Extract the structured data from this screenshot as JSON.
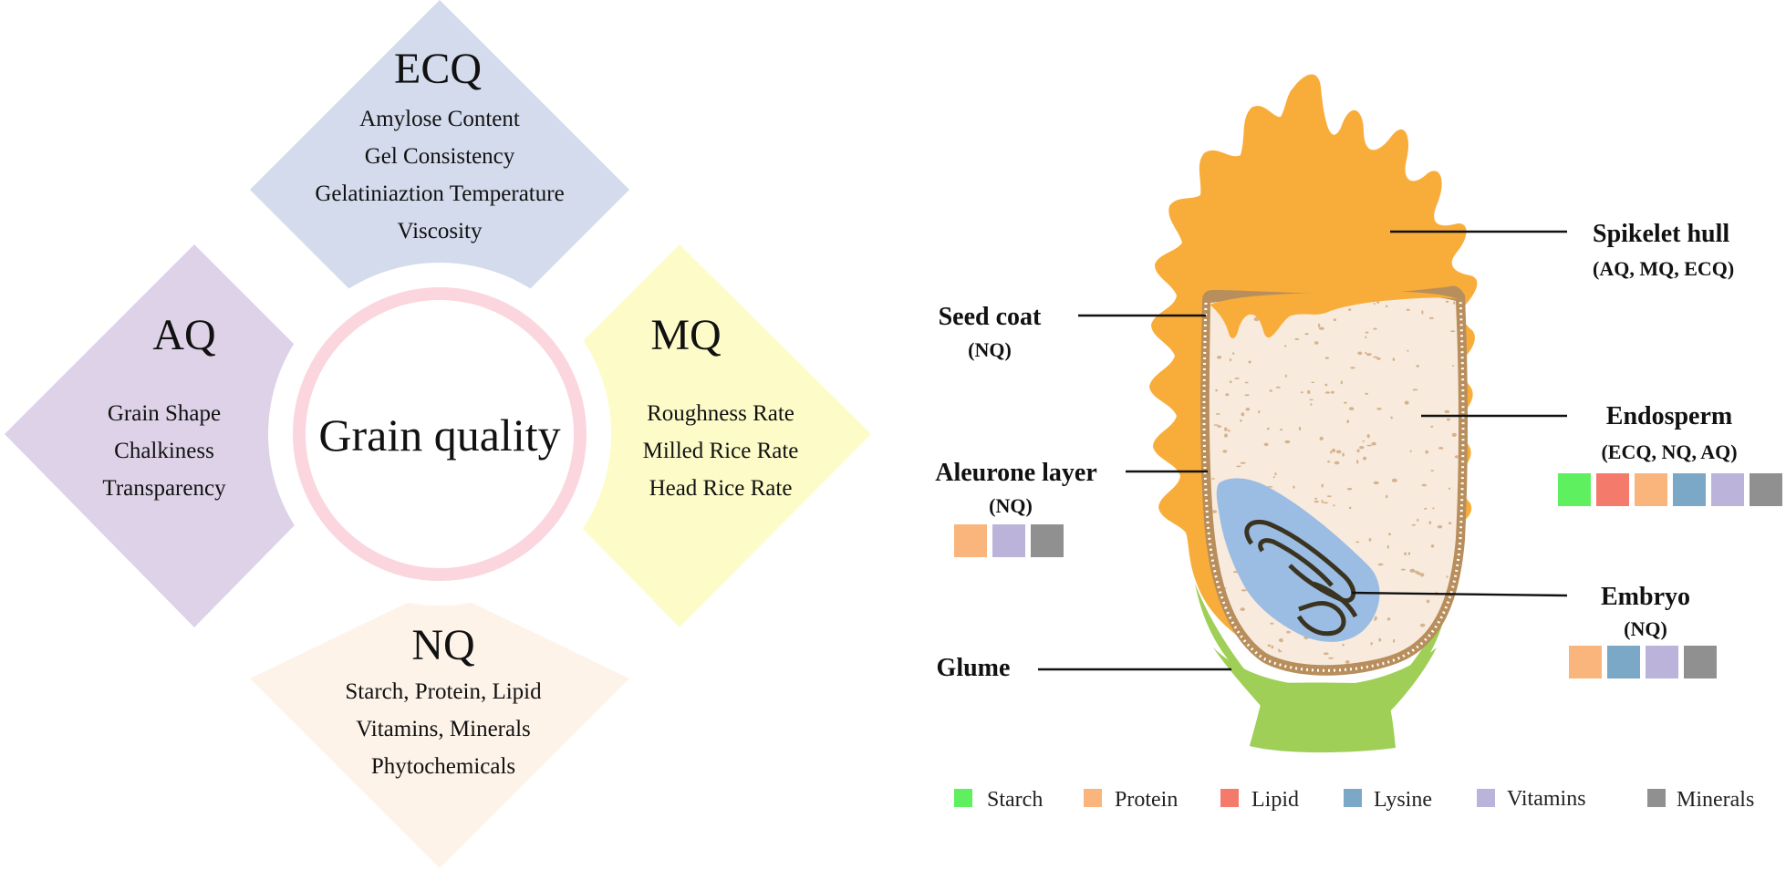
{
  "center": {
    "title": "Grain quality"
  },
  "ecq": {
    "title": "ECQ",
    "items": [
      "Amylose Content",
      "Gel Consistency",
      "Gelatiniaztion Temperature",
      "Viscosity"
    ],
    "color": "#d3dbec"
  },
  "aq": {
    "title": "AQ",
    "items": [
      "Grain Shape",
      "Chalkiness",
      "Transparency"
    ],
    "color": "#ddd2e7"
  },
  "mq": {
    "title": "MQ",
    "items": [
      "Roughness Rate",
      "Milled Rice Rate",
      "Head Rice Rate"
    ],
    "color": "#fdfcc8"
  },
  "nq": {
    "title": "NQ",
    "items": [
      "Starch, Protein, Lipid",
      "Vitamins, Minerals",
      "Phytochemicals"
    ],
    "color": "#fdf3e9"
  },
  "ring_color": "#fbd6df",
  "grain_labels": {
    "spikelet_hull": {
      "name": "Spikelet hull",
      "sub": "(AQ, MQ, ECQ)"
    },
    "seed_coat": {
      "name": "Seed coat",
      "sub": "(NQ)"
    },
    "endosperm": {
      "name": "Endosperm",
      "sub": "(ECQ, NQ, AQ)"
    },
    "aleurone_layer": {
      "name": "Aleurone layer",
      "sub": "(NQ)"
    },
    "embryo": {
      "name": "Embryo",
      "sub": "(NQ)"
    },
    "glume": {
      "name": "Glume"
    }
  },
  "nutrients": {
    "starch": {
      "label": "Starch",
      "color": "#5ef05e"
    },
    "protein": {
      "label": "Protein",
      "color": "#f9b57c"
    },
    "lipid": {
      "label": "Lipid",
      "color": "#f47a6c"
    },
    "lysine": {
      "label": "Lysine",
      "color": "#7ba8c6"
    },
    "vitamins": {
      "label": "Vitamins",
      "color": "#bcb3da"
    },
    "minerals": {
      "label": "Minerals",
      "color": "#909090"
    }
  },
  "nutrient_sets": {
    "aleurone_layer": [
      "protein",
      "vitamins",
      "minerals"
    ],
    "endosperm": [
      "starch",
      "lipid",
      "protein",
      "lysine",
      "vitamins",
      "minerals"
    ],
    "embryo": [
      "protein",
      "lysine",
      "vitamins",
      "minerals"
    ]
  },
  "legend_order": [
    "starch",
    "protein",
    "lipid",
    "lysine",
    "vitamins",
    "minerals"
  ],
  "colors": {
    "hull": "#f8ad3a",
    "glume": "#9fcf56",
    "seed_coat": "#b88e5c",
    "endosperm": "#f8ebdd",
    "endosperm_dots": "#d6b38e",
    "embryo": "#9bbde3",
    "embryo_lines": "#3a3320"
  }
}
